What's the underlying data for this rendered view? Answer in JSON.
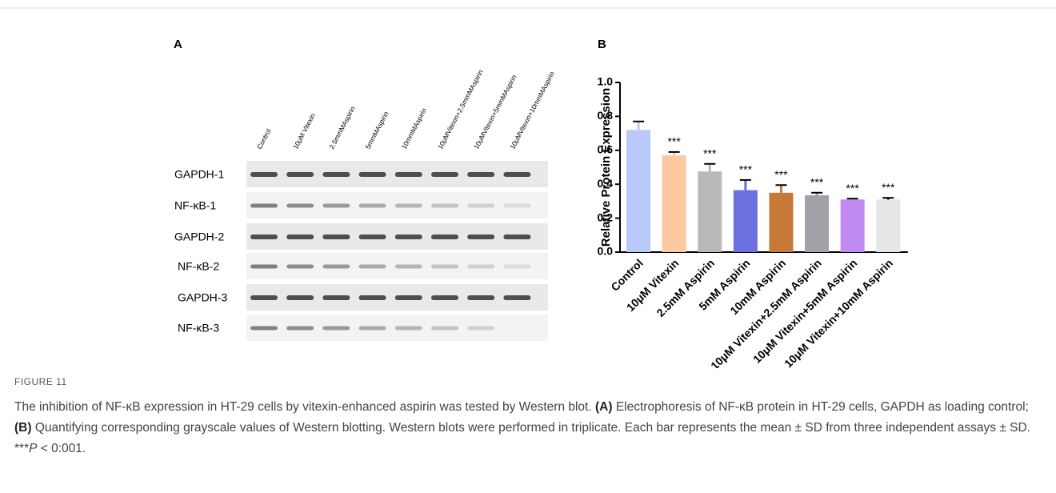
{
  "panel_a": {
    "label": "A",
    "lanes": [
      "Control",
      "10μM Vitexin",
      "2.5mmMAspirin",
      "5mmMAspirin",
      "10mmMAspirin",
      "10μMVitexin+2.5mmMAspirin",
      "10μMVitexin+5mmMAspirin",
      "10μMVitexin+10mmMAspirin"
    ],
    "rows": [
      "GAPDH-1",
      "NF-κB-1",
      "GAPDH-2",
      "NF-κB-2",
      "GAPDH-3",
      "NF-κB-3"
    ]
  },
  "chart_data": {
    "type": "bar",
    "panel_label": "B",
    "ylabel": "Relative Protein Expression",
    "categories": [
      "Control",
      "10μM Vitexin",
      "2.5mM Aspirin",
      "5mM Aspirin",
      "10mM Aspirin",
      "10μM Vitexin+2.5mM Aspirin",
      "10μM Vitexin+5mM Aspirin",
      "10μM Vitexin+10mM Aspirin"
    ],
    "values": [
      0.72,
      0.57,
      0.475,
      0.365,
      0.35,
      0.335,
      0.31,
      0.31
    ],
    "errors": [
      0.05,
      0.02,
      0.045,
      0.06,
      0.045,
      0.015,
      0.005,
      0.01
    ],
    "annotations": [
      null,
      "***",
      "***",
      "***",
      "***",
      "***",
      "***",
      "***"
    ],
    "colors": [
      "#b9c9f9",
      "#fcc89f",
      "#b9b9b9",
      "#6b6fe0",
      "#c77a38",
      "#a1a1a8",
      "#c08af2",
      "#e6e6e6"
    ],
    "ylim": [
      0,
      1
    ],
    "yticks": [
      {
        "value": 0,
        "label": "0.0"
      },
      0.2,
      0.4,
      0.6,
      0.8,
      {
        "value": 1,
        "label": "1.0"
      }
    ]
  },
  "figure": {
    "label": "FIGURE 11",
    "caption": [
      "The inhibition of NF-κB expression in HT-29 cells by vitexin-enhanced aspirin was tested by Western blot. ",
      "(A)",
      " Electrophoresis of NF-κB protein in HT-29 cells, GAPDH as loading control; ",
      "(B)",
      " Quantifying corresponding grayscale values of Western blotting. Western blots were performed in triplicate. Each bar represents the mean ± SD from three independent assays ± SD. ***",
      "P",
      " < 0:001."
    ]
  }
}
